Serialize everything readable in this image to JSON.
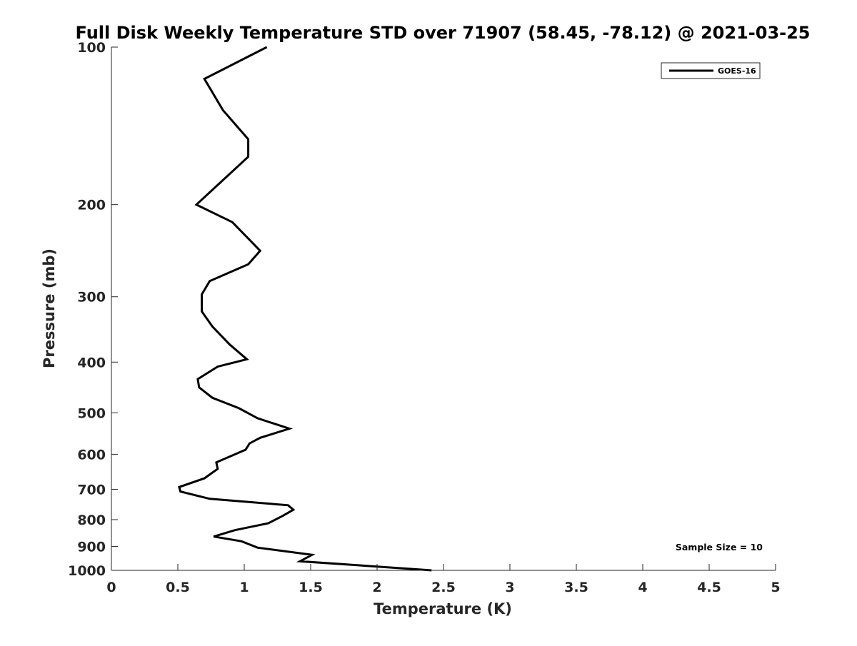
{
  "chart_data": {
    "type": "line",
    "title": "Full Disk Weekly Temperature STD over 71907 (58.45, -78.12) @ 2021-03-25",
    "xlabel": "Temperature (K)",
    "ylabel": "Pressure (mb)",
    "xlim": [
      0,
      5
    ],
    "ylim": [
      100,
      1000
    ],
    "y_scale": "log",
    "y_reversed": true,
    "x_ticks": [
      0,
      0.5,
      1,
      1.5,
      2,
      2.5,
      3,
      3.5,
      4,
      4.5,
      5
    ],
    "x_tick_labels": [
      "0",
      "0.5",
      "1",
      "1.5",
      "2",
      "2.5",
      "3",
      "3.5",
      "4",
      "4.5",
      "5"
    ],
    "y_ticks": [
      100,
      200,
      300,
      400,
      500,
      600,
      700,
      800,
      900,
      1000
    ],
    "y_tick_labels": [
      "100",
      "200",
      "300",
      "400",
      "500",
      "600",
      "700",
      "800",
      "900",
      "1000"
    ],
    "grid": false,
    "legend_position": "top-right",
    "annotation": "Sample Size = 10",
    "line_color": "#000000",
    "series": [
      {
        "name": "GOES-16",
        "x": [
          1.17,
          0.7,
          0.84,
          1.03,
          1.03,
          0.64,
          0.91,
          1.12,
          1.03,
          0.74,
          0.68,
          0.68,
          0.76,
          0.89,
          1.02,
          0.8,
          0.65,
          0.66,
          0.76,
          0.96,
          1.1,
          1.34,
          1.12,
          1.04,
          1.01,
          0.79,
          0.8,
          0.7,
          0.51,
          0.52,
          0.74,
          1.33,
          1.37,
          1.29,
          1.18,
          0.93,
          0.77,
          0.98,
          1.1,
          1.51,
          1.42,
          2.41
        ],
        "y": [
          100,
          115,
          132,
          150,
          162,
          200,
          216,
          245,
          260,
          280,
          297,
          320,
          342,
          370,
          395,
          408,
          431,
          447,
          468,
          490,
          512,
          536,
          558,
          572,
          588,
          622,
          640,
          667,
          693,
          707,
          730,
          751,
          766,
          787,
          813,
          838,
          862,
          880,
          905,
          934,
          961,
          1000
        ]
      }
    ]
  }
}
